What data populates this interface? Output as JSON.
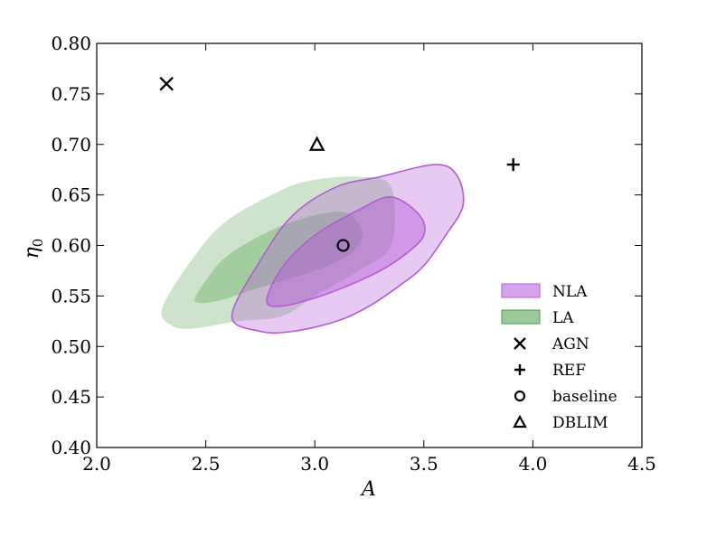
{
  "chart_data": {
    "type": "scatter",
    "title": "",
    "xlabel": "A",
    "ylabel": "η",
    "ylabel_sub": "0",
    "xlim": [
      2.0,
      4.5
    ],
    "ylim": [
      0.4,
      0.8
    ],
    "x_ticks": [
      "2.0",
      "2.5",
      "3.0",
      "3.5",
      "4.0",
      "4.5"
    ],
    "y_ticks": [
      "0.40",
      "0.45",
      "0.50",
      "0.55",
      "0.60",
      "0.65",
      "0.70",
      "0.75",
      "0.80"
    ],
    "grid": false,
    "legend_position": "lower-right",
    "contours": [
      {
        "name": "LA",
        "color": "#4a9c45",
        "outer_region": [
          [
            2.3,
            0.538
          ],
          [
            2.45,
            0.59
          ],
          [
            2.6,
            0.625
          ],
          [
            2.85,
            0.655
          ],
          [
            3.0,
            0.665
          ],
          [
            3.2,
            0.668
          ],
          [
            3.35,
            0.658
          ],
          [
            3.35,
            0.6
          ],
          [
            3.2,
            0.575
          ],
          [
            3.0,
            0.55
          ],
          [
            2.85,
            0.53
          ],
          [
            2.65,
            0.525
          ],
          [
            2.45,
            0.518
          ],
          [
            2.35,
            0.52
          ]
        ],
        "inner_region": [
          [
            2.45,
            0.545
          ],
          [
            2.5,
            0.565
          ],
          [
            2.6,
            0.59
          ],
          [
            2.8,
            0.615
          ],
          [
            3.0,
            0.63
          ],
          [
            3.15,
            0.632
          ],
          [
            3.22,
            0.61
          ],
          [
            3.15,
            0.59
          ],
          [
            3.0,
            0.575
          ],
          [
            2.85,
            0.565
          ],
          [
            2.7,
            0.555
          ],
          [
            2.55,
            0.545
          ]
        ]
      },
      {
        "name": "NLA",
        "color": "#b45ad8",
        "outer_region": [
          [
            2.62,
            0.53
          ],
          [
            2.75,
            0.585
          ],
          [
            2.9,
            0.63
          ],
          [
            3.1,
            0.658
          ],
          [
            3.3,
            0.668
          ],
          [
            3.55,
            0.68
          ],
          [
            3.65,
            0.67
          ],
          [
            3.68,
            0.64
          ],
          [
            3.6,
            0.61
          ],
          [
            3.5,
            0.58
          ],
          [
            3.4,
            0.562
          ],
          [
            3.25,
            0.54
          ],
          [
            3.1,
            0.525
          ],
          [
            2.9,
            0.515
          ],
          [
            2.75,
            0.515
          ]
        ],
        "inner_region": [
          [
            2.78,
            0.545
          ],
          [
            2.85,
            0.578
          ],
          [
            3.0,
            0.61
          ],
          [
            3.2,
            0.635
          ],
          [
            3.35,
            0.648
          ],
          [
            3.48,
            0.63
          ],
          [
            3.5,
            0.61
          ],
          [
            3.42,
            0.592
          ],
          [
            3.3,
            0.575
          ],
          [
            3.15,
            0.56
          ],
          [
            3.0,
            0.548
          ],
          [
            2.85,
            0.54
          ]
        ]
      }
    ],
    "points": [
      {
        "name": "AGN",
        "marker": "x",
        "x": 2.32,
        "y": 0.76
      },
      {
        "name": "REF",
        "marker": "+",
        "x": 3.91,
        "y": 0.68
      },
      {
        "name": "baseline",
        "marker": "o",
        "x": 3.13,
        "y": 0.6
      },
      {
        "name": "DBLIM",
        "marker": "^",
        "x": 3.01,
        "y": 0.7
      }
    ],
    "legend": [
      "NLA",
      "LA",
      "AGN",
      "REF",
      "baseline",
      "DBLIM"
    ]
  }
}
